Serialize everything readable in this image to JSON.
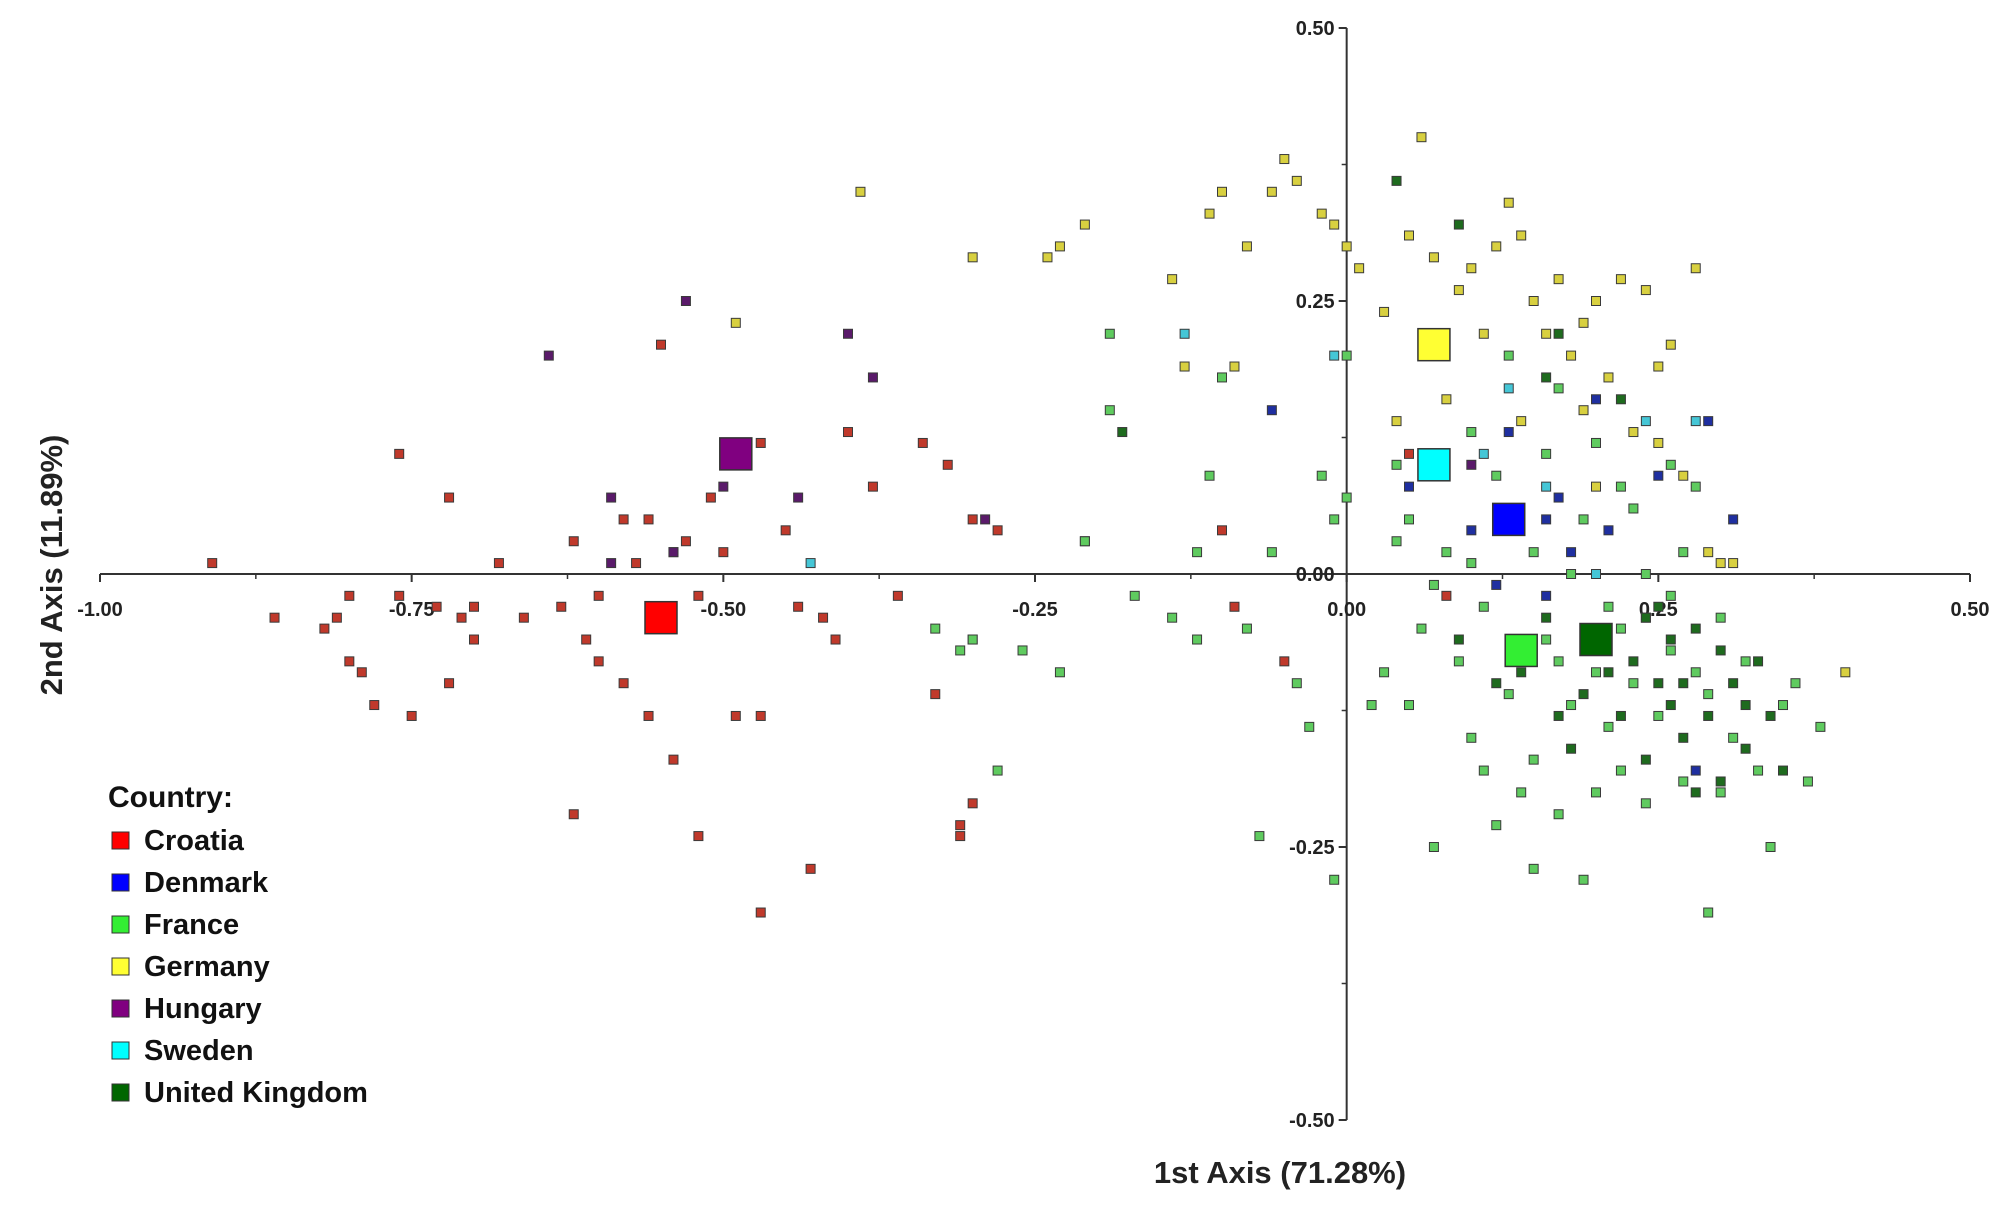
{
  "chart_data": {
    "type": "scatter",
    "title": "",
    "xlabel": "1st Axis (71.28%)",
    "ylabel": "2nd Axis (11.89%)",
    "xlim": [
      -1.0,
      0.5
    ],
    "ylim": [
      -0.5,
      0.5
    ],
    "x_ticks": [
      "-1.00",
      "-0.75",
      "-0.50",
      "-0.25",
      "0.00",
      "0.25",
      "0.50"
    ],
    "x_tick_values": [
      -1.0,
      -0.75,
      -0.5,
      -0.25,
      0.0,
      0.25,
      0.5
    ],
    "y_ticks": [
      "0.50",
      "0.25",
      "0.00",
      "-0.25",
      "-0.50"
    ],
    "y_tick_values": [
      0.5,
      0.25,
      0.0,
      -0.25,
      -0.5
    ],
    "grid": false,
    "legend": {
      "title": "Country:",
      "position": "bottom-left"
    },
    "series": [
      {
        "name": "Croatia",
        "color": "#ff0000",
        "point_color": "#c0392b",
        "centroid": [
          -0.55,
          -0.04
        ],
        "points": [
          [
            -0.91,
            0.01
          ],
          [
            -0.86,
            -0.04
          ],
          [
            -0.82,
            -0.05
          ],
          [
            -0.81,
            -0.04
          ],
          [
            -0.8,
            -0.02
          ],
          [
            -0.8,
            -0.08
          ],
          [
            -0.79,
            -0.09
          ],
          [
            -0.78,
            -0.12
          ],
          [
            -0.76,
            -0.02
          ],
          [
            -0.75,
            -0.13
          ],
          [
            -0.73,
            -0.03
          ],
          [
            -0.72,
            -0.1
          ],
          [
            -0.71,
            -0.04
          ],
          [
            -0.7,
            -0.03
          ],
          [
            -0.7,
            -0.06
          ],
          [
            -0.68,
            0.01
          ],
          [
            -0.66,
            -0.04
          ],
          [
            -0.63,
            -0.03
          ],
          [
            -0.6,
            -0.02
          ],
          [
            -0.6,
            -0.08
          ],
          [
            -0.58,
            -0.1
          ],
          [
            -0.56,
            0.05
          ],
          [
            -0.54,
            0.02
          ],
          [
            -0.53,
            0.03
          ],
          [
            -0.52,
            -0.02
          ],
          [
            -0.51,
            0.07
          ],
          [
            -0.5,
            0.02
          ],
          [
            -0.49,
            0.1
          ],
          [
            -0.47,
            0.12
          ],
          [
            -0.45,
            0.04
          ],
          [
            -0.44,
            -0.03
          ],
          [
            -0.42,
            -0.04
          ],
          [
            -0.41,
            -0.06
          ],
          [
            -0.4,
            0.13
          ],
          [
            -0.38,
            0.08
          ],
          [
            -0.36,
            -0.02
          ],
          [
            -0.34,
            0.12
          ],
          [
            -0.33,
            -0.11
          ],
          [
            -0.32,
            0.1
          ],
          [
            -0.3,
            0.05
          ],
          [
            -0.3,
            -0.06
          ],
          [
            -0.3,
            -0.21
          ],
          [
            -0.28,
            0.04
          ],
          [
            -0.21,
            0.03
          ],
          [
            -0.1,
            0.04
          ],
          [
            -0.09,
            -0.03
          ],
          [
            -0.76,
            0.11
          ],
          [
            -0.72,
            0.07
          ],
          [
            -0.55,
            0.21
          ],
          [
            -0.62,
            -0.22
          ],
          [
            -0.47,
            -0.31
          ],
          [
            -0.43,
            -0.27
          ],
          [
            -0.52,
            -0.24
          ],
          [
            -0.54,
            -0.17
          ],
          [
            -0.56,
            -0.13
          ],
          [
            -0.49,
            -0.13
          ],
          [
            -0.47,
            -0.13
          ],
          [
            -0.31,
            -0.23
          ],
          [
            -0.31,
            -0.24
          ],
          [
            -0.57,
            0.01
          ],
          [
            -0.61,
            -0.06
          ],
          [
            -0.55,
            -0.03
          ],
          [
            -0.05,
            -0.08
          ],
          [
            0.05,
            0.11
          ],
          [
            0.08,
            -0.02
          ],
          [
            -0.62,
            0.03
          ],
          [
            -0.58,
            0.05
          ]
        ]
      },
      {
        "name": "Denmark",
        "color": "#0000ff",
        "point_color": "#1f2fa0",
        "centroid": [
          0.13,
          0.05
        ],
        "points": [
          [
            0.05,
            0.08
          ],
          [
            0.1,
            0.04
          ],
          [
            0.13,
            0.13
          ],
          [
            0.17,
            0.07
          ],
          [
            0.18,
            0.02
          ],
          [
            0.2,
            0.16
          ],
          [
            0.25,
            0.09
          ],
          [
            0.29,
            0.14
          ],
          [
            0.31,
            0.05
          ],
          [
            0.12,
            -0.01
          ],
          [
            0.16,
            -0.02
          ],
          [
            0.28,
            -0.18
          ],
          [
            0.21,
            0.04
          ],
          [
            -0.06,
            0.15
          ],
          [
            0.16,
            0.05
          ]
        ]
      },
      {
        "name": "France",
        "color": "#33ee33",
        "point_color": "#5fcb5f",
        "centroid": [
          0.14,
          -0.07
        ],
        "points": [
          [
            -0.33,
            -0.05
          ],
          [
            -0.31,
            -0.07
          ],
          [
            -0.3,
            -0.06
          ],
          [
            -0.28,
            -0.18
          ],
          [
            -0.26,
            -0.07
          ],
          [
            -0.23,
            -0.09
          ],
          [
            -0.19,
            0.22
          ],
          [
            -0.19,
            0.15
          ],
          [
            -0.17,
            -0.02
          ],
          [
            -0.14,
            -0.04
          ],
          [
            -0.12,
            0.02
          ],
          [
            -0.12,
            -0.06
          ],
          [
            -0.1,
            0.18
          ],
          [
            -0.08,
            -0.05
          ],
          [
            -0.07,
            -0.24
          ],
          [
            -0.06,
            0.02
          ],
          [
            -0.04,
            -0.1
          ],
          [
            -0.03,
            -0.14
          ],
          [
            -0.02,
            0.09
          ],
          [
            0.0,
            0.07
          ],
          [
            -0.01,
            -0.28
          ],
          [
            -0.01,
            0.05
          ],
          [
            0.02,
            -0.12
          ],
          [
            0.03,
            -0.09
          ],
          [
            0.04,
            0.03
          ],
          [
            0.05,
            -0.12
          ],
          [
            0.06,
            -0.05
          ],
          [
            0.07,
            -0.25
          ],
          [
            0.08,
            0.02
          ],
          [
            0.09,
            -0.08
          ],
          [
            0.1,
            0.01
          ],
          [
            0.1,
            -0.15
          ],
          [
            0.11,
            -0.03
          ],
          [
            0.12,
            -0.23
          ],
          [
            0.12,
            0.09
          ],
          [
            0.13,
            -0.11
          ],
          [
            0.14,
            -0.2
          ],
          [
            0.15,
            0.02
          ],
          [
            0.15,
            -0.17
          ],
          [
            0.16,
            -0.06
          ],
          [
            0.17,
            -0.08
          ],
          [
            0.17,
            -0.22
          ],
          [
            0.18,
            -0.12
          ],
          [
            0.19,
            0.05
          ],
          [
            0.2,
            -0.2
          ],
          [
            0.2,
            -0.09
          ],
          [
            0.21,
            -0.14
          ],
          [
            0.22,
            -0.05
          ],
          [
            0.22,
            -0.18
          ],
          [
            0.23,
            -0.1
          ],
          [
            0.24,
            -0.21
          ],
          [
            0.24,
            -0.04
          ],
          [
            0.25,
            -0.13
          ],
          [
            0.26,
            -0.07
          ],
          [
            0.27,
            -0.19
          ],
          [
            0.27,
            0.02
          ],
          [
            0.28,
            -0.09
          ],
          [
            0.29,
            -0.11
          ],
          [
            0.29,
            -0.31
          ],
          [
            0.3,
            -0.2
          ],
          [
            0.31,
            -0.15
          ],
          [
            0.32,
            -0.08
          ],
          [
            0.33,
            -0.18
          ],
          [
            0.34,
            -0.25
          ],
          [
            0.35,
            -0.12
          ],
          [
            0.36,
            -0.1
          ],
          [
            0.37,
            -0.19
          ],
          [
            0.38,
            -0.14
          ],
          [
            0.15,
            -0.27
          ],
          [
            0.19,
            -0.28
          ],
          [
            0.13,
            0.2
          ],
          [
            0.2,
            0.12
          ],
          [
            0.22,
            0.08
          ],
          [
            0.23,
            0.06
          ],
          [
            0.26,
            0.1
          ],
          [
            0.28,
            0.08
          ],
          [
            0.1,
            0.13
          ],
          [
            0.0,
            0.2
          ],
          [
            0.05,
            0.05
          ],
          [
            0.07,
            -0.01
          ],
          [
            -0.21,
            0.03
          ],
          [
            0.04,
            0.1
          ],
          [
            -0.11,
            0.09
          ],
          [
            0.16,
            0.11
          ],
          [
            0.11,
            -0.18
          ],
          [
            0.21,
            -0.03
          ],
          [
            0.18,
            0.0
          ],
          [
            0.24,
            0.0
          ],
          [
            0.26,
            -0.02
          ],
          [
            0.3,
            -0.04
          ],
          [
            0.17,
            0.17
          ]
        ]
      },
      {
        "name": "Germany",
        "color": "#ffff33",
        "point_color": "#d8d040",
        "centroid": [
          0.07,
          0.21
        ],
        "points": [
          [
            -0.39,
            0.35
          ],
          [
            -0.49,
            0.23
          ],
          [
            -0.3,
            0.29
          ],
          [
            -0.24,
            0.29
          ],
          [
            -0.23,
            0.3
          ],
          [
            -0.21,
            0.32
          ],
          [
            -0.14,
            0.27
          ],
          [
            -0.11,
            0.33
          ],
          [
            -0.1,
            0.35
          ],
          [
            -0.08,
            0.3
          ],
          [
            -0.06,
            0.35
          ],
          [
            -0.04,
            0.36
          ],
          [
            -0.02,
            0.33
          ],
          [
            -0.01,
            0.32
          ],
          [
            0.0,
            0.3
          ],
          [
            0.03,
            0.24
          ],
          [
            0.05,
            0.31
          ],
          [
            0.06,
            0.4
          ],
          [
            0.07,
            0.29
          ],
          [
            0.09,
            0.26
          ],
          [
            0.1,
            0.28
          ],
          [
            0.12,
            0.3
          ],
          [
            0.13,
            0.34
          ],
          [
            0.14,
            0.31
          ],
          [
            0.15,
            0.25
          ],
          [
            0.16,
            0.22
          ],
          [
            0.17,
            0.27
          ],
          [
            0.18,
            0.2
          ],
          [
            0.19,
            0.15
          ],
          [
            0.2,
            0.25
          ],
          [
            0.21,
            0.18
          ],
          [
            0.22,
            0.27
          ],
          [
            0.23,
            0.13
          ],
          [
            0.24,
            0.26
          ],
          [
            0.25,
            0.12
          ],
          [
            0.26,
            0.21
          ],
          [
            0.27,
            0.09
          ],
          [
            0.28,
            0.28
          ],
          [
            0.29,
            0.02
          ],
          [
            0.3,
            0.01
          ],
          [
            0.31,
            0.01
          ],
          [
            0.4,
            -0.09
          ],
          [
            -0.05,
            0.38
          ],
          [
            0.01,
            0.28
          ],
          [
            0.04,
            0.14
          ],
          [
            0.08,
            0.16
          ],
          [
            0.11,
            0.22
          ],
          [
            0.19,
            0.23
          ],
          [
            0.14,
            0.14
          ],
          [
            0.2,
            0.08
          ],
          [
            0.25,
            0.19
          ],
          [
            -0.09,
            0.19
          ],
          [
            -0.13,
            0.19
          ]
        ]
      },
      {
        "name": "Hungary",
        "color": "#800080",
        "point_color": "#5a1a6a",
        "centroid": [
          -0.49,
          0.11
        ],
        "points": [
          [
            -0.53,
            0.25
          ],
          [
            -0.64,
            0.2
          ],
          [
            -0.4,
            0.22
          ],
          [
            -0.38,
            0.18
          ],
          [
            -0.59,
            0.07
          ],
          [
            -0.5,
            0.08
          ],
          [
            -0.44,
            0.07
          ],
          [
            -0.29,
            0.05
          ],
          [
            -0.59,
            0.01
          ],
          [
            -0.54,
            0.02
          ],
          [
            0.1,
            0.1
          ]
        ]
      },
      {
        "name": "Sweden",
        "color": "#00ffff",
        "point_color": "#45c6d6",
        "centroid": [
          0.07,
          0.1
        ],
        "points": [
          [
            -0.13,
            0.22
          ],
          [
            -0.01,
            0.2
          ],
          [
            0.13,
            0.17
          ],
          [
            0.24,
            0.14
          ],
          [
            0.28,
            0.14
          ],
          [
            -0.43,
            0.01
          ],
          [
            0.2,
            0.0
          ],
          [
            0.16,
            0.08
          ],
          [
            0.11,
            0.11
          ]
        ]
      },
      {
        "name": "United Kingdom",
        "color": "#006600",
        "point_color": "#1e6b1e",
        "centroid": [
          0.2,
          -0.06
        ],
        "points": [
          [
            -0.18,
            0.13
          ],
          [
            0.04,
            0.36
          ],
          [
            0.09,
            0.32
          ],
          [
            0.16,
            0.18
          ],
          [
            0.17,
            0.22
          ],
          [
            0.22,
            0.16
          ],
          [
            0.24,
            -0.04
          ],
          [
            0.25,
            -0.03
          ],
          [
            0.26,
            -0.06
          ],
          [
            0.27,
            -0.1
          ],
          [
            0.28,
            -0.05
          ],
          [
            0.29,
            -0.13
          ],
          [
            0.3,
            -0.07
          ],
          [
            0.31,
            -0.1
          ],
          [
            0.32,
            -0.16
          ],
          [
            0.33,
            -0.08
          ],
          [
            0.34,
            -0.13
          ],
          [
            0.35,
            -0.18
          ],
          [
            0.2,
            -0.05
          ],
          [
            0.21,
            -0.09
          ],
          [
            0.22,
            -0.13
          ],
          [
            0.23,
            -0.08
          ],
          [
            0.19,
            -0.11
          ],
          [
            0.18,
            -0.16
          ],
          [
            0.26,
            -0.12
          ],
          [
            0.28,
            -0.2
          ],
          [
            0.3,
            -0.19
          ],
          [
            0.32,
            -0.12
          ],
          [
            0.14,
            -0.09
          ],
          [
            0.17,
            -0.13
          ],
          [
            0.24,
            -0.17
          ],
          [
            0.27,
            -0.15
          ],
          [
            0.25,
            -0.1
          ],
          [
            0.16,
            -0.04
          ],
          [
            0.09,
            -0.06
          ],
          [
            0.12,
            -0.1
          ]
        ]
      }
    ]
  }
}
